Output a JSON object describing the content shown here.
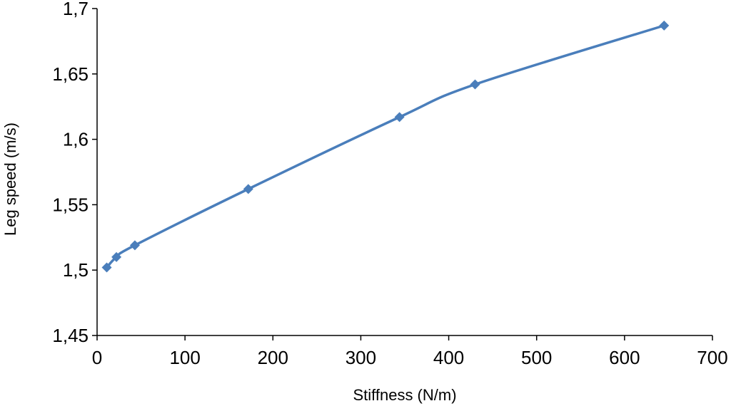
{
  "chart_data": {
    "type": "line",
    "title": "",
    "xlabel": "Stiffness (N/m)",
    "ylabel": "Leg speed (m/s)",
    "xlim": [
      0,
      700
    ],
    "ylim": [
      1.45,
      1.7
    ],
    "x_ticks": [
      "0",
      "100",
      "200",
      "300",
      "400",
      "500",
      "600",
      "700"
    ],
    "y_ticks": [
      "1,45",
      "1,5",
      "1,55",
      "1,6",
      "1,65",
      "1,7"
    ],
    "grid": false,
    "legend": "none",
    "series": [
      {
        "color": "#4a7ebb",
        "marker": "diamond",
        "smooth": true,
        "points": [
          {
            "x": 11,
            "y": 1.502
          },
          {
            "x": 22,
            "y": 1.51
          },
          {
            "x": 43,
            "y": 1.519
          },
          {
            "x": 172,
            "y": 1.562
          },
          {
            "x": 344,
            "y": 1.617
          },
          {
            "x": 430,
            "y": 1.642
          },
          {
            "x": 645,
            "y": 1.687
          }
        ]
      }
    ]
  }
}
